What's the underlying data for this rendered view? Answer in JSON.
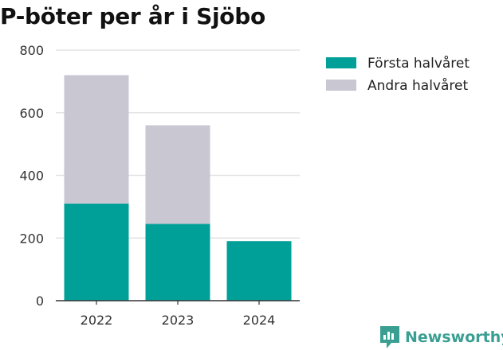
{
  "chart_data": {
    "type": "bar",
    "stacked": true,
    "title": "P-böter per år i Sjöbo",
    "categories": [
      "2022",
      "2023",
      "2024"
    ],
    "series": [
      {
        "name": "Första halvåret",
        "values": [
          310,
          245,
          190
        ],
        "color": "#00a098"
      },
      {
        "name": "Andra halvåret",
        "values": [
          410,
          315,
          0
        ],
        "color": "#c8c7d2"
      }
    ],
    "ylim": [
      0,
      800
    ],
    "yticks": [
      0,
      200,
      400,
      600,
      800
    ],
    "grid": true,
    "legend_position": "right"
  },
  "branding": {
    "logo_text": "Newsworthy",
    "logo_color": "#3a9f92",
    "logo_icon": "newsworthy-chart-icon"
  }
}
